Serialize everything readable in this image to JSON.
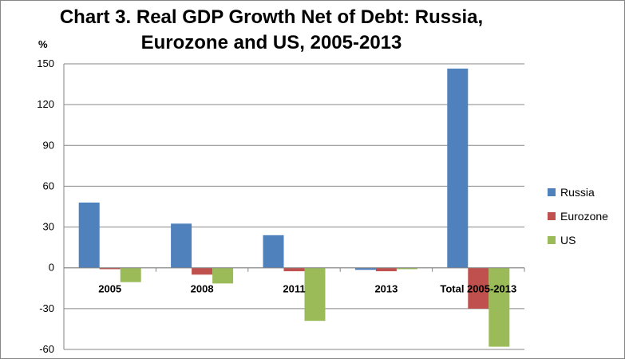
{
  "chart_data": {
    "type": "bar",
    "title": "Chart 3. Real GDP Growth Net of Debt: Russia, Eurozone and US, 2005-2013",
    "title_lines": [
      "Chart 3. Real GDP Growth Net of Debt: Russia,",
      "Eurozone and US, 2005-2013"
    ],
    "ylabel": "%",
    "xlabel": "",
    "ylim": [
      -60,
      150
    ],
    "yticks": [
      150,
      120,
      90,
      60,
      30,
      0,
      -30,
      -60
    ],
    "categories": [
      "2005",
      "2008",
      "2011",
      "2013",
      "Total 2005-2013"
    ],
    "series": [
      {
        "name": "Russia",
        "color": "#4F81BD",
        "values": [
          48,
          32.5,
          24,
          -1.5,
          146.5
        ]
      },
      {
        "name": "Eurozone",
        "color": "#C0504D",
        "values": [
          -1,
          -5,
          -2.5,
          -2.5,
          -30
        ]
      },
      {
        "name": "US",
        "color": "#9BBB59",
        "values": [
          -10.5,
          -11.5,
          -39,
          -1,
          -58
        ]
      }
    ],
    "grid": true,
    "legend": "right"
  }
}
